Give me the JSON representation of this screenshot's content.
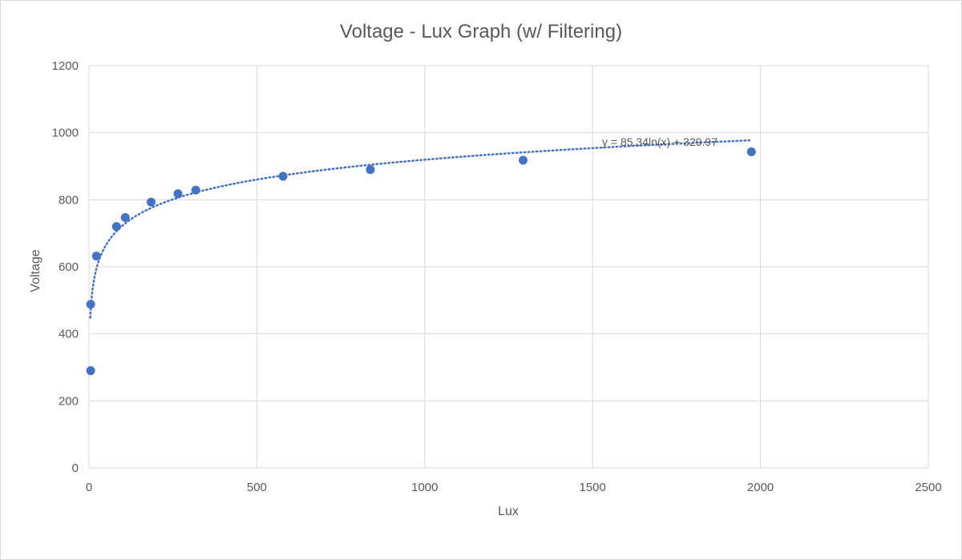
{
  "chart_data": {
    "type": "scatter",
    "title": "Voltage - Lux Graph (w/ Filtering)",
    "xlabel": "Lux",
    "ylabel": "Voltage",
    "xlim": [
      0,
      2500
    ],
    "ylim": [
      0,
      1200
    ],
    "x_ticks": [
      0,
      500,
      1000,
      1500,
      2000,
      2500
    ],
    "y_ticks": [
      0,
      200,
      400,
      600,
      800,
      1000,
      1200
    ],
    "grid": true,
    "marker_color": "#4472c4",
    "series": [
      {
        "x": [
          5,
          5,
          22,
          82,
          108,
          185,
          265,
          318,
          578,
          838,
          1293,
          1973
        ],
        "y": [
          290,
          488,
          632,
          720,
          747,
          793,
          818,
          829,
          870,
          890,
          918,
          943
        ]
      }
    ],
    "trendline": {
      "type": "logarithmic",
      "a": 85.34,
      "b": 329.97,
      "x_range": [
        4,
        1975
      ],
      "equation_label": "y = 85.34ln(x) + 329.97",
      "color": "#4472c4",
      "style": "dotted"
    }
  }
}
